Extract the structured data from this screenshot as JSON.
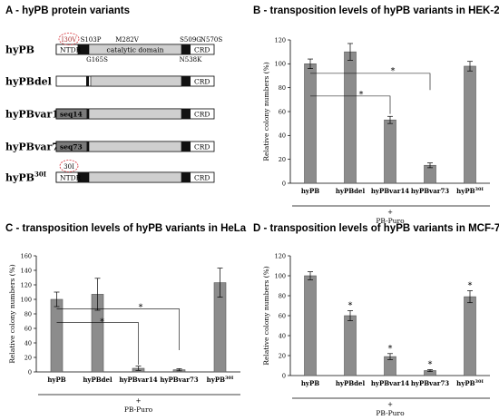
{
  "panels": {
    "a": {
      "title": "A - hyPB protein variants",
      "variants": [
        {
          "name": "hyPB",
          "sup": "",
          "n_label": "NTDR",
          "mutations_top": [
            "I30V",
            "S103P",
            "M282V",
            "S509G",
            "N570S"
          ],
          "mutations_bottom": [
            "G165S",
            "N538K"
          ]
        },
        {
          "name": "hyPBdel",
          "sup": "",
          "n_label": "",
          "mutations_top": [],
          "mutations_bottom": []
        },
        {
          "name": "hyPBvar14",
          "sup": "",
          "n_label": "seq14",
          "mutations_top": [],
          "mutations_bottom": []
        },
        {
          "name": "hyPBvar73",
          "sup": "",
          "n_label": "seq73",
          "mutations_top": [],
          "mutations_bottom": []
        },
        {
          "name": "hyPB",
          "sup": "30I",
          "n_label": "NTDR",
          "mutations_top": [
            "30I"
          ],
          "mutations_bottom": []
        }
      ],
      "domain_label": "catalytic domain",
      "crd_label": "CRD"
    },
    "b": {
      "title": "B - transposition levels of hyPB variants in HEK-293",
      "chart_data": {
        "type": "bar",
        "categories": [
          "hyPB",
          "hyPBdel",
          "hyPBvar14",
          "hyPBvar73",
          "hyPB30I"
        ],
        "values": [
          100,
          110,
          53,
          15,
          98
        ],
        "errors": [
          4,
          7,
          3,
          2,
          4
        ],
        "ylabel": "Relative colony numbers (%)",
        "ylim": [
          0,
          120
        ],
        "yticks": [
          0,
          20,
          40,
          60,
          80,
          100,
          120
        ],
        "footer_plus": "+",
        "footer_label": "PB-Puro",
        "significance": [
          {
            "from": 0,
            "to": 2,
            "mark": "*"
          },
          {
            "from": 0,
            "to": 3,
            "mark": "*"
          }
        ],
        "bar_stars": []
      }
    },
    "c": {
      "title": "C - transposition levels of hyPB variants in HeLa",
      "chart_data": {
        "type": "bar",
        "categories": [
          "hyPB",
          "hyPBdel",
          "hyPBvar14",
          "hyPBvar73",
          "hyPB30I"
        ],
        "values": [
          100,
          107,
          5,
          3,
          123
        ],
        "errors": [
          10,
          22,
          3,
          1.5,
          20
        ],
        "ylabel": "Relative colony numbers (%)",
        "ylim": [
          0,
          160
        ],
        "yticks": [
          0,
          20,
          40,
          60,
          80,
          100,
          120,
          140,
          160
        ],
        "footer_plus": "+",
        "footer_label": "PB-Puro",
        "significance": [
          {
            "from": 0,
            "to": 2,
            "mark": "*"
          },
          {
            "from": 0,
            "to": 3,
            "mark": "*"
          }
        ],
        "bar_stars": []
      }
    },
    "d": {
      "title": "D - transposition levels of hyPB variants in MCF-7",
      "chart_data": {
        "type": "bar",
        "categories": [
          "hyPB",
          "hyPBdel",
          "hyPBvar14",
          "hyPBvar73",
          "hyPB30I"
        ],
        "values": [
          100,
          60,
          19,
          5,
          79
        ],
        "errors": [
          4,
          5,
          3,
          1,
          6
        ],
        "ylabel": "Relative colony numbers (%)",
        "ylim": [
          0,
          120
        ],
        "yticks": [
          0,
          20,
          40,
          60,
          80,
          100,
          120
        ],
        "footer_plus": "+",
        "footer_label": "PB-Puro",
        "significance": [],
        "bar_stars": [
          1,
          2,
          3,
          4
        ],
        "star_mark": "*"
      }
    }
  },
  "colors": {
    "bar": "#8c8c8c",
    "bar_stroke": "#555555",
    "domain": "#cfcfcf",
    "dark_block": "#111111",
    "seq_block": "#7a7a7a",
    "circle": "#d9363e"
  }
}
